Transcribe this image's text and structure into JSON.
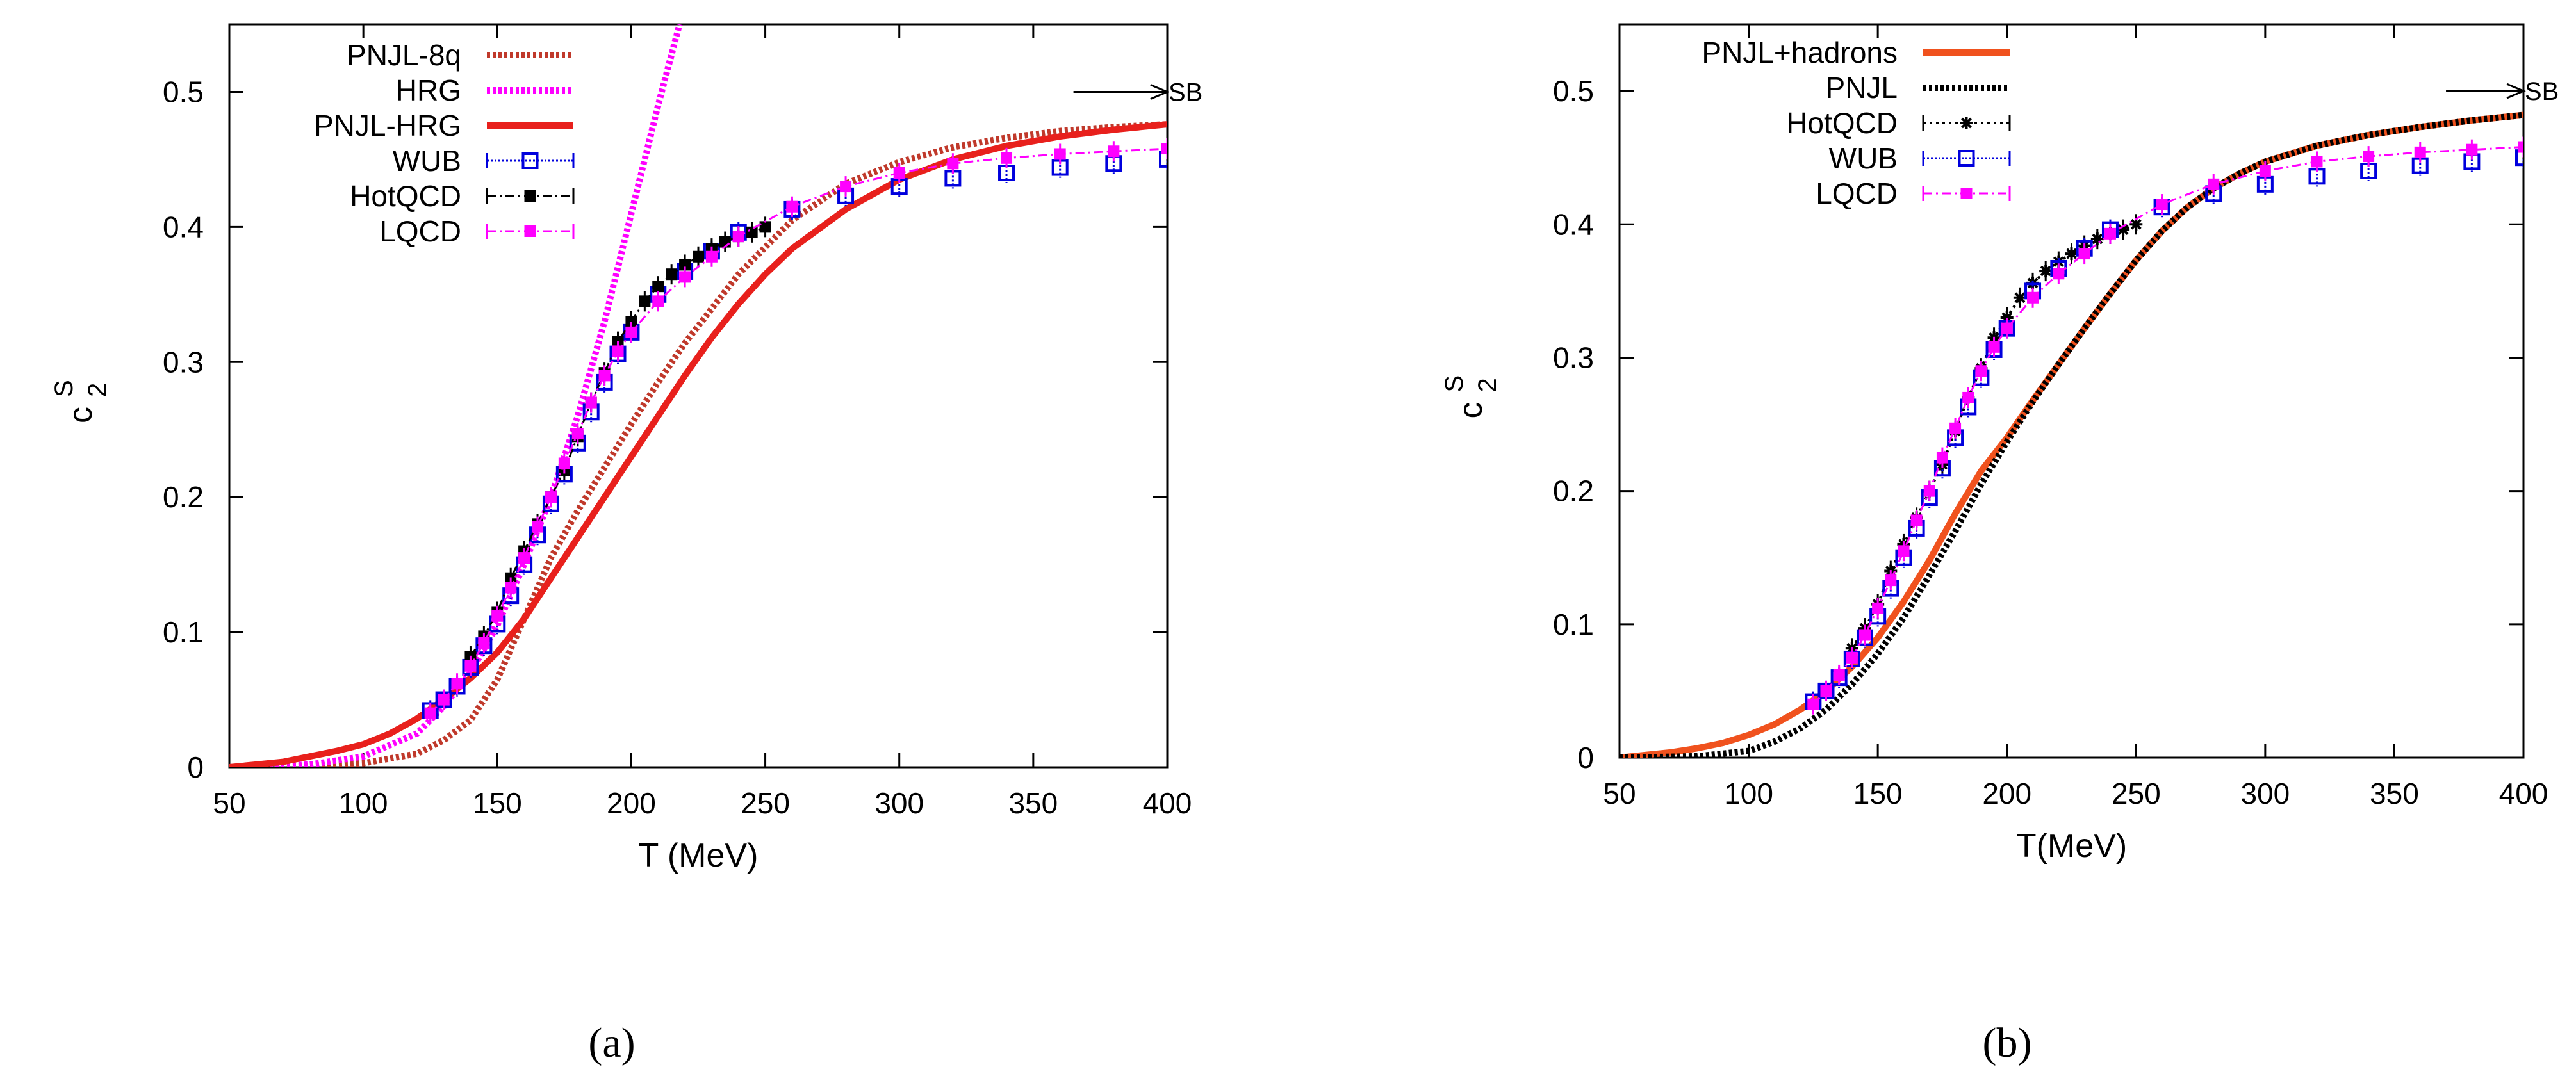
{
  "chart_data": [
    {
      "type": "line",
      "panel": "(a)",
      "xlabel": "T (MeV)",
      "ylabel": "c",
      "ylabel_sup": "S",
      "ylabel_sub": "2",
      "xlim": [
        50,
        400
      ],
      "ylim": [
        0,
        0.55
      ],
      "xticks": [
        "50",
        "100",
        "150",
        "200",
        "250",
        "300",
        "350",
        "400"
      ],
      "yticks": [
        "0",
        "0.1",
        "0.2",
        "0.3",
        "0.4",
        "0.5"
      ],
      "annotation": {
        "text": "SB",
        "x_from": 365,
        "x_to": 400,
        "y": 0.5
      },
      "series": [
        {
          "name": "PNJL-8q",
          "style": "dotted",
          "color": "#c0392b",
          "x": [
            50,
            80,
            100,
            120,
            130,
            140,
            150,
            160,
            170,
            180,
            190,
            200,
            210,
            220,
            240,
            260,
            280,
            300,
            320,
            340,
            360,
            380,
            400
          ],
          "y": [
            0,
            0.001,
            0.003,
            0.01,
            0.02,
            0.035,
            0.065,
            0.11,
            0.155,
            0.19,
            0.222,
            0.254,
            0.285,
            0.314,
            0.365,
            0.405,
            0.432,
            0.448,
            0.459,
            0.466,
            0.471,
            0.474,
            0.476
          ]
        },
        {
          "name": "HRG",
          "style": "dotted",
          "color": "#ff00ff",
          "x": [
            50,
            80,
            100,
            120,
            130,
            140,
            150,
            160,
            170,
            180,
            190,
            200,
            210,
            218
          ],
          "y": [
            0,
            0.002,
            0.008,
            0.025,
            0.045,
            0.07,
            0.105,
            0.15,
            0.2,
            0.26,
            0.33,
            0.41,
            0.49,
            0.55
          ]
        },
        {
          "name": "PNJL-HRG",
          "style": "solid",
          "color": "#e8201c",
          "x": [
            50,
            60,
            70,
            80,
            90,
            100,
            110,
            120,
            130,
            140,
            150,
            160,
            170,
            180,
            190,
            200,
            210,
            220,
            230,
            240,
            250,
            260,
            280,
            300,
            320,
            340,
            360,
            380,
            400
          ],
          "y": [
            0,
            0.002,
            0.004,
            0.008,
            0.012,
            0.017,
            0.025,
            0.036,
            0.05,
            0.066,
            0.085,
            0.11,
            0.14,
            0.17,
            0.2,
            0.23,
            0.26,
            0.29,
            0.318,
            0.343,
            0.365,
            0.384,
            0.413,
            0.435,
            0.45,
            0.46,
            0.467,
            0.472,
            0.476
          ]
        },
        {
          "name": "WUB",
          "style": "points-open-square",
          "color": "#0000dd",
          "x": [
            125,
            130,
            135,
            140,
            145,
            150,
            155,
            160,
            165,
            170,
            175,
            180,
            185,
            190,
            195,
            200,
            210,
            220,
            230,
            240,
            260,
            280,
            300,
            320,
            340,
            360,
            380,
            400
          ],
          "y": [
            0.042,
            0.05,
            0.06,
            0.074,
            0.09,
            0.106,
            0.127,
            0.15,
            0.172,
            0.195,
            0.217,
            0.24,
            0.263,
            0.285,
            0.306,
            0.322,
            0.35,
            0.367,
            0.382,
            0.396,
            0.413,
            0.423,
            0.43,
            0.436,
            0.44,
            0.444,
            0.447,
            0.45
          ]
        },
        {
          "name": "HotQCD",
          "style": "dashdot-points",
          "color": "#000000",
          "x": [
            140,
            145,
            150,
            155,
            160,
            165,
            170,
            175,
            180,
            185,
            190,
            195,
            200,
            205,
            210,
            215,
            220,
            225,
            230,
            235,
            240,
            245,
            250
          ],
          "y": [
            0.082,
            0.097,
            0.115,
            0.14,
            0.16,
            0.18,
            0.2,
            0.22,
            0.245,
            0.27,
            0.292,
            0.315,
            0.33,
            0.345,
            0.356,
            0.365,
            0.372,
            0.378,
            0.384,
            0.389,
            0.393,
            0.396,
            0.4
          ]
        },
        {
          "name": "LQCD",
          "style": "dashdot-points",
          "color": "#ff00ff",
          "x": [
            125,
            130,
            135,
            140,
            145,
            150,
            155,
            160,
            165,
            170,
            175,
            180,
            185,
            190,
            195,
            200,
            210,
            220,
            230,
            240,
            260,
            280,
            300,
            320,
            340,
            360,
            380,
            400
          ],
          "y": [
            0.04,
            0.05,
            0.062,
            0.075,
            0.092,
            0.112,
            0.133,
            0.155,
            0.178,
            0.2,
            0.225,
            0.247,
            0.27,
            0.29,
            0.308,
            0.322,
            0.345,
            0.363,
            0.378,
            0.393,
            0.415,
            0.43,
            0.44,
            0.447,
            0.451,
            0.454,
            0.456,
            0.458
          ]
        }
      ]
    },
    {
      "type": "line",
      "panel": "(b)",
      "xlabel": "T(MeV)",
      "ylabel": "c",
      "ylabel_sup": "S",
      "ylabel_sub": "2",
      "xlim": [
        50,
        400
      ],
      "ylim": [
        0,
        0.55
      ],
      "xticks": [
        "50",
        "100",
        "150",
        "200",
        "250",
        "300",
        "350",
        "400"
      ],
      "yticks": [
        "0",
        "0.1",
        "0.2",
        "0.3",
        "0.4",
        "0.5"
      ],
      "annotation": {
        "text": "SB",
        "x_from": 370,
        "x_to": 400,
        "y": 0.5
      },
      "series": [
        {
          "name": "PNJL+hadrons",
          "style": "solid",
          "color": "#f0521e",
          "x": [
            50,
            60,
            70,
            80,
            90,
            100,
            110,
            120,
            130,
            140,
            150,
            160,
            170,
            180,
            190,
            200,
            210,
            220,
            230,
            240,
            250,
            260,
            270,
            280,
            290,
            300,
            320,
            340,
            360,
            380,
            400
          ],
          "y": [
            0,
            0.002,
            0.004,
            0.007,
            0.011,
            0.017,
            0.025,
            0.036,
            0.05,
            0.068,
            0.09,
            0.117,
            0.148,
            0.183,
            0.215,
            0.24,
            0.268,
            0.295,
            0.322,
            0.348,
            0.373,
            0.395,
            0.413,
            0.427,
            0.438,
            0.447,
            0.459,
            0.467,
            0.473,
            0.478,
            0.482
          ]
        },
        {
          "name": "PNJL",
          "style": "dotted",
          "color": "#000000",
          "x": [
            50,
            80,
            100,
            110,
            120,
            130,
            140,
            150,
            160,
            170,
            180,
            190,
            200,
            210,
            220,
            230,
            240,
            250,
            260,
            270,
            280,
            290,
            300,
            320,
            340,
            360,
            380,
            400
          ],
          "y": [
            0,
            0.001,
            0.005,
            0.012,
            0.022,
            0.036,
            0.055,
            0.078,
            0.105,
            0.137,
            0.17,
            0.205,
            0.237,
            0.267,
            0.295,
            0.322,
            0.348,
            0.373,
            0.395,
            0.413,
            0.427,
            0.438,
            0.447,
            0.459,
            0.467,
            0.473,
            0.478,
            0.482
          ]
        },
        {
          "name": "HotQCD",
          "style": "dotted-points-star",
          "color": "#000000",
          "x": [
            140,
            145,
            150,
            155,
            160,
            165,
            170,
            175,
            180,
            185,
            190,
            195,
            200,
            205,
            210,
            215,
            220,
            225,
            230,
            235,
            240,
            245,
            250
          ],
          "y": [
            0.082,
            0.097,
            0.115,
            0.14,
            0.16,
            0.18,
            0.2,
            0.22,
            0.245,
            0.27,
            0.292,
            0.315,
            0.33,
            0.345,
            0.356,
            0.365,
            0.372,
            0.378,
            0.384,
            0.389,
            0.393,
            0.396,
            0.4
          ]
        },
        {
          "name": "WUB",
          "style": "points-open-square",
          "color": "#0000dd",
          "x": [
            125,
            130,
            135,
            140,
            145,
            150,
            155,
            160,
            165,
            170,
            175,
            180,
            185,
            190,
            195,
            200,
            210,
            220,
            230,
            240,
            260,
            280,
            300,
            320,
            340,
            360,
            380,
            400
          ],
          "y": [
            0.042,
            0.05,
            0.06,
            0.074,
            0.09,
            0.106,
            0.127,
            0.15,
            0.172,
            0.195,
            0.217,
            0.24,
            0.263,
            0.285,
            0.306,
            0.322,
            0.35,
            0.367,
            0.382,
            0.396,
            0.413,
            0.423,
            0.43,
            0.436,
            0.44,
            0.444,
            0.447,
            0.45
          ]
        },
        {
          "name": "LQCD",
          "style": "dashdot-points",
          "color": "#ff00ff",
          "x": [
            125,
            130,
            135,
            140,
            145,
            150,
            155,
            160,
            165,
            170,
            175,
            180,
            185,
            190,
            195,
            200,
            210,
            220,
            230,
            240,
            260,
            280,
            300,
            320,
            340,
            360,
            380,
            400
          ],
          "y": [
            0.04,
            0.05,
            0.062,
            0.075,
            0.092,
            0.112,
            0.133,
            0.155,
            0.178,
            0.2,
            0.225,
            0.247,
            0.27,
            0.29,
            0.308,
            0.322,
            0.345,
            0.363,
            0.378,
            0.393,
            0.415,
            0.43,
            0.44,
            0.447,
            0.451,
            0.454,
            0.456,
            0.458
          ]
        }
      ]
    }
  ]
}
